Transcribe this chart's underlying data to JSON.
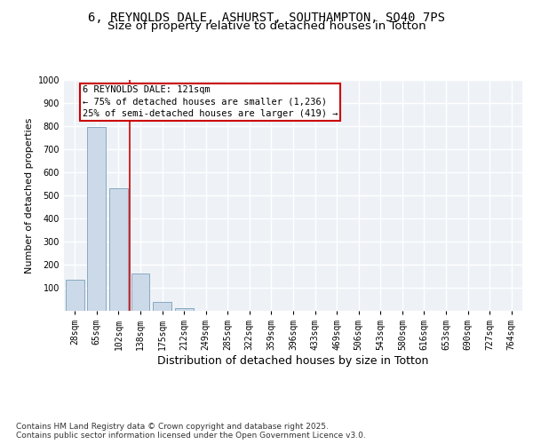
{
  "title_line1": "6, REYNOLDS DALE, ASHURST, SOUTHAMPTON, SO40 7PS",
  "title_line2": "Size of property relative to detached houses in Totton",
  "xlabel": "Distribution of detached houses by size in Totton",
  "ylabel": "Number of detached properties",
  "bar_color": "#ccd9e8",
  "bar_edge_color": "#7aa0bb",
  "categories": [
    "28sqm",
    "65sqm",
    "102sqm",
    "138sqm",
    "175sqm",
    "212sqm",
    "249sqm",
    "285sqm",
    "322sqm",
    "359sqm",
    "396sqm",
    "433sqm",
    "469sqm",
    "506sqm",
    "543sqm",
    "580sqm",
    "616sqm",
    "653sqm",
    "690sqm",
    "727sqm",
    "764sqm"
  ],
  "values": [
    135,
    795,
    530,
    160,
    38,
    13,
    0,
    0,
    0,
    0,
    0,
    0,
    0,
    0,
    0,
    0,
    0,
    0,
    0,
    0,
    0
  ],
  "vline_color": "#cc0000",
  "vline_pos": 2.5,
  "annotation_text": "6 REYNOLDS DALE: 121sqm\n← 75% of detached houses are smaller (1,236)\n25% of semi-detached houses are larger (419) →",
  "annotation_box_color": "#cc0000",
  "ylim": [
    0,
    1000
  ],
  "yticks": [
    0,
    100,
    200,
    300,
    400,
    500,
    600,
    700,
    800,
    900,
    1000
  ],
  "background_color": "#eef2f7",
  "grid_color": "#ffffff",
  "footer_text": "Contains HM Land Registry data © Crown copyright and database right 2025.\nContains public sector information licensed under the Open Government Licence v3.0.",
  "title_fontsize": 10,
  "subtitle_fontsize": 9.5,
  "annotation_fontsize": 7.5,
  "xlabel_fontsize": 9,
  "ylabel_fontsize": 8,
  "tick_fontsize": 7,
  "footer_fontsize": 6.5
}
